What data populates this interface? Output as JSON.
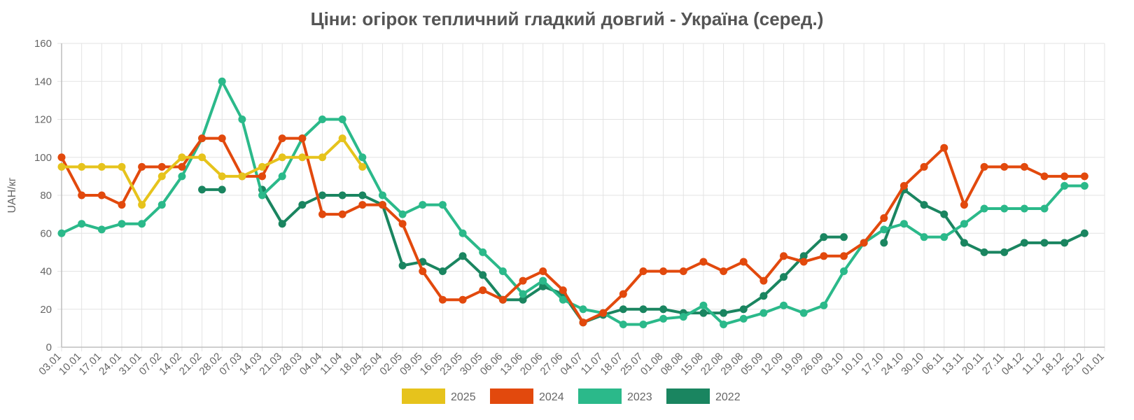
{
  "chart_data": {
    "type": "line",
    "title": "Ціни: огірок тепличний гладкий довгий - Україна (серед.)",
    "xlabel": "",
    "ylabel": "UAH/кг",
    "ylim": [
      0,
      160
    ],
    "yticks": [
      0,
      20,
      40,
      60,
      80,
      100,
      120,
      140,
      160
    ],
    "grid": true,
    "legend_position": "bottom",
    "categories": [
      "03.01",
      "10.01",
      "17.01",
      "24.01",
      "31.01",
      "07.02",
      "14.02",
      "21.02",
      "28.02",
      "07.03",
      "14.03",
      "21.03",
      "28.03",
      "04.04",
      "11.04",
      "18.04",
      "25.04",
      "02.05",
      "09.05",
      "16.05",
      "23.05",
      "30.05",
      "06.06",
      "13.06",
      "20.06",
      "27.06",
      "04.07",
      "11.07",
      "18.07",
      "25.07",
      "01.08",
      "08.08",
      "15.08",
      "22.08",
      "29.08",
      "05.09",
      "12.09",
      "19.09",
      "26.09",
      "03.10",
      "10.10",
      "17.10",
      "24.10",
      "30.10",
      "06.11",
      "13.11",
      "20.11",
      "27.11",
      "04.12",
      "11.12",
      "18.12",
      "25.12",
      "01.01"
    ],
    "series": [
      {
        "name": "2025",
        "color": "#E6C31C",
        "values": [
          95,
          95,
          95,
          95,
          75,
          90,
          100,
          100,
          90,
          90,
          95,
          100,
          100,
          100,
          110,
          95,
          null,
          null,
          null,
          null,
          null,
          null,
          null,
          null,
          null,
          null,
          null,
          null,
          null,
          null,
          null,
          null,
          null,
          null,
          null,
          null,
          null,
          null,
          null,
          null,
          null,
          null,
          null,
          null,
          null,
          null,
          null,
          null,
          null,
          null,
          null,
          null,
          null
        ]
      },
      {
        "name": "2024",
        "color": "#E2490D",
        "values": [
          100,
          80,
          80,
          75,
          95,
          95,
          95,
          110,
          110,
          90,
          90,
          110,
          110,
          70,
          70,
          75,
          75,
          65,
          40,
          25,
          25,
          30,
          25,
          35,
          40,
          30,
          13,
          18,
          28,
          40,
          40,
          40,
          45,
          40,
          45,
          35,
          48,
          45,
          48,
          48,
          55,
          68,
          85,
          95,
          105,
          75,
          95,
          95,
          95,
          90,
          90,
          90,
          null
        ]
      },
      {
        "name": "2023",
        "color": "#2BB98A",
        "values": [
          60,
          65,
          62,
          65,
          65,
          75,
          90,
          110,
          140,
          120,
          80,
          90,
          110,
          120,
          120,
          100,
          80,
          70,
          75,
          75,
          60,
          50,
          40,
          28,
          35,
          25,
          20,
          18,
          12,
          12,
          15,
          16,
          22,
          12,
          15,
          18,
          22,
          18,
          22,
          40,
          55,
          62,
          65,
          58,
          58,
          65,
          73,
          73,
          73,
          73,
          85,
          85,
          null
        ]
      },
      {
        "name": "2022",
        "color": "#1A8560",
        "values": [
          null,
          null,
          null,
          null,
          null,
          null,
          null,
          83,
          83,
          null,
          83,
          65,
          75,
          80,
          80,
          80,
          75,
          43,
          45,
          40,
          48,
          38,
          25,
          25,
          32,
          28,
          13,
          17,
          20,
          20,
          20,
          18,
          18,
          18,
          20,
          27,
          37,
          48,
          58,
          58,
          null,
          55,
          83,
          75,
          70,
          55,
          50,
          50,
          55,
          55,
          55,
          60,
          null
        ]
      }
    ]
  }
}
